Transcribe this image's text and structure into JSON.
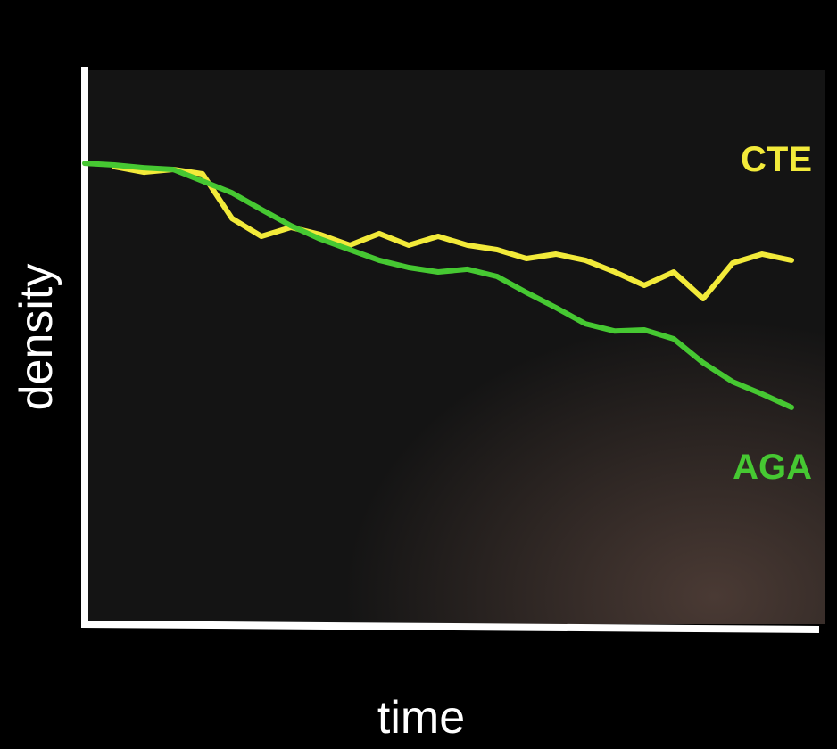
{
  "chart_data": {
    "type": "line",
    "x_label": "time",
    "y_label": "density",
    "x": [
      0,
      4,
      8,
      12,
      16,
      20,
      24,
      28,
      32,
      36,
      40,
      44,
      48,
      52,
      56,
      60,
      64,
      68,
      72,
      76,
      80,
      84,
      88,
      92,
      96,
      100
    ],
    "xlim": [
      0,
      100
    ],
    "ylim": [
      0,
      100
    ],
    "series": [
      {
        "name": "CTE",
        "color": "#f2ea3a",
        "values": [
          null,
          82.1,
          81.1,
          81.6,
          80.8,
          72.8,
          69.6,
          71.2,
          69.9,
          68,
          70.1,
          68,
          69.6,
          68,
          67.2,
          65.6,
          66.4,
          65.3,
          63.2,
          60.8,
          63.2,
          58.4,
          64.8,
          66.4,
          65.3,
          null
        ]
      },
      {
        "name": "AGA",
        "color": "#46c832",
        "values": [
          82.7,
          82.4,
          81.9,
          81.6,
          79.5,
          77.4,
          74.4,
          71.5,
          69.1,
          67.2,
          65.3,
          64,
          63.2,
          63.7,
          62.4,
          59.5,
          56.8,
          53.9,
          52.6,
          52.8,
          51.2,
          46.9,
          43.5,
          41.3,
          38.9,
          null
        ]
      }
    ]
  }
}
